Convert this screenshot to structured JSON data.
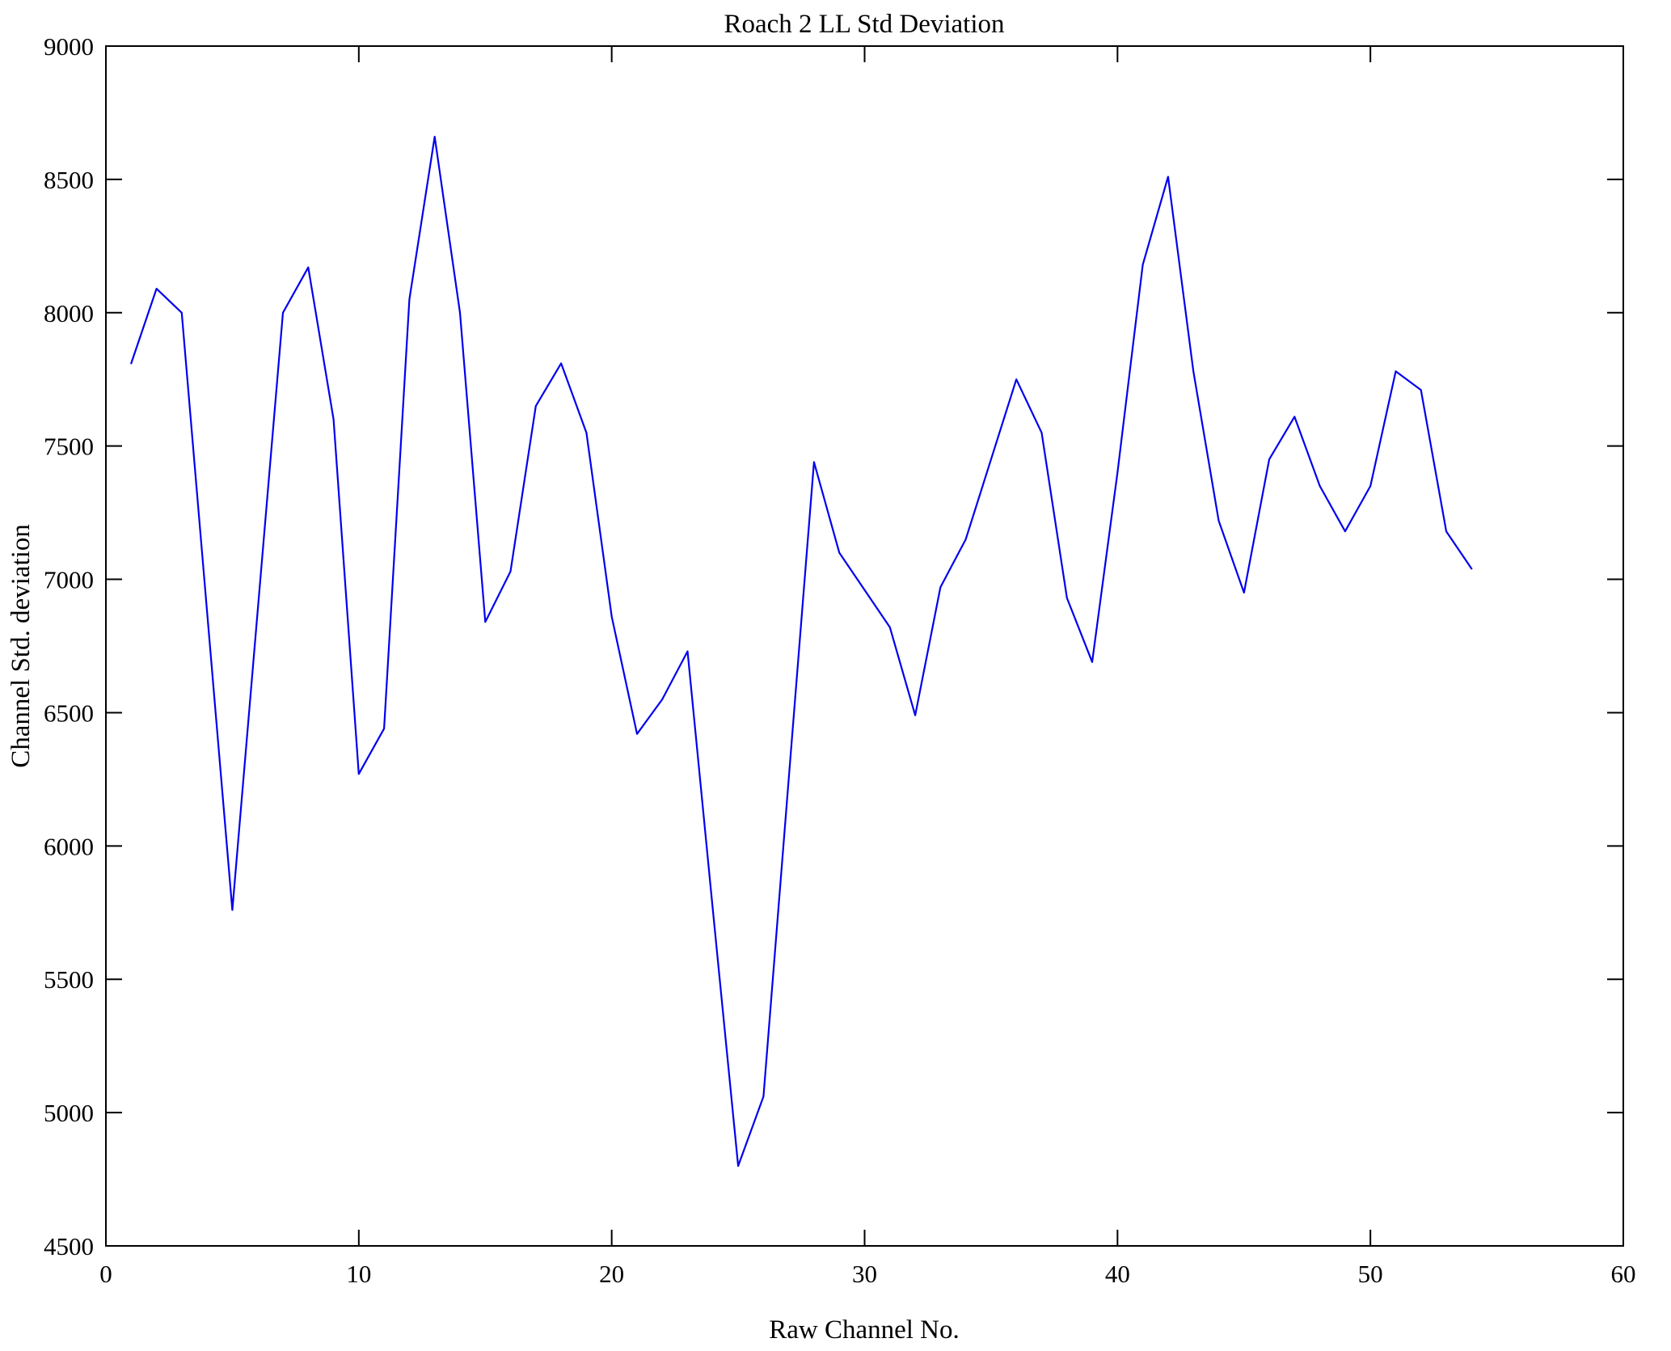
{
  "chart_data": {
    "type": "line",
    "title": "Roach 2 LL Std Deviation",
    "xlabel": "Raw Channel No.",
    "ylabel": "Channel Std. deviation",
    "xlim": [
      0,
      60
    ],
    "ylim": [
      4500,
      9000
    ],
    "xticks": [
      0,
      10,
      20,
      30,
      40,
      50,
      60
    ],
    "yticks": [
      4500,
      5000,
      5500,
      6000,
      6500,
      7000,
      7500,
      8000,
      8500,
      9000
    ],
    "grid": false,
    "legend": "none",
    "line_color": "#0000ee",
    "axis_color": "#000000",
    "background_color": "#ffffff",
    "x": [
      1,
      2,
      3,
      4,
      5,
      6,
      7,
      8,
      9,
      10,
      11,
      12,
      13,
      14,
      15,
      16,
      17,
      18,
      19,
      20,
      21,
      22,
      23,
      24,
      25,
      26,
      27,
      28,
      29,
      30,
      31,
      32,
      33,
      34,
      35,
      36,
      37,
      38,
      39,
      40,
      41,
      42,
      43,
      44,
      45,
      46,
      47,
      48,
      49,
      50,
      51,
      52,
      53,
      54
    ],
    "y": [
      7810,
      8090,
      8000,
      6880,
      5760,
      6880,
      8000,
      8170,
      7600,
      6270,
      6440,
      8050,
      8660,
      8000,
      6840,
      7030,
      7650,
      7810,
      7550,
      6860,
      6420,
      6550,
      6730,
      5760,
      4800,
      5060,
      6250,
      7440,
      7100,
      6960,
      6820,
      6490,
      6970,
      7150,
      7450,
      7750,
      7550,
      6930,
      6690,
      7400,
      8180,
      8510,
      7780,
      7220,
      6950,
      7450,
      7610,
      7350,
      7180,
      7350,
      7780,
      7710,
      7180,
      7040
    ]
  }
}
